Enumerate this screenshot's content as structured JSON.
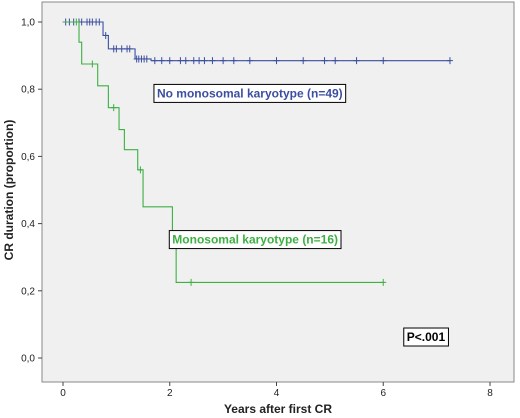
{
  "chart_data": {
    "type": "line",
    "subtype": "kaplan-meier step curve",
    "xlabel": "Years after first CR",
    "ylabel": "CR duration (proportion)",
    "xlim": [
      0,
      8
    ],
    "ylim": [
      0,
      1
    ],
    "x_ticks": [
      0,
      2,
      4,
      6,
      8
    ],
    "y_ticks": [
      0,
      0.2,
      0.4,
      0.6,
      0.8,
      1.0
    ],
    "x_tick_labels": [
      "0",
      "2",
      "4",
      "6",
      "8"
    ],
    "y_tick_labels": [
      "0,0",
      "0,2",
      "0,4",
      "0,6",
      "0,8",
      "1,0"
    ],
    "grid": false,
    "plot_background": "#f0f0f0",
    "series": [
      {
        "name": "No monosomal karyotype (n=49)",
        "color": "#3b4fa0",
        "steps": [
          [
            0,
            1.0
          ],
          [
            0.75,
            0.96
          ],
          [
            0.85,
            0.92
          ],
          [
            1.35,
            0.89
          ],
          [
            1.65,
            0.885
          ],
          [
            7.25,
            0.885
          ]
        ],
        "censors": [
          0.05,
          0.12,
          0.2,
          0.3,
          0.35,
          0.45,
          0.5,
          0.55,
          0.62,
          0.68,
          0.8,
          0.95,
          1.0,
          1.1,
          1.2,
          1.25,
          1.38,
          1.42,
          1.47,
          1.52,
          1.57,
          1.72,
          1.85,
          2.0,
          2.2,
          2.3,
          2.45,
          2.55,
          2.65,
          2.8,
          3.0,
          3.2,
          3.5,
          4.0,
          4.5,
          4.9,
          5.1,
          5.5,
          6.0,
          7.25
        ]
      },
      {
        "name": "Monosomal karyotype (n=16)",
        "color": "#3cb043",
        "steps": [
          [
            0,
            1.0
          ],
          [
            0.3,
            0.94
          ],
          [
            0.35,
            0.875
          ],
          [
            0.65,
            0.81
          ],
          [
            0.85,
            0.745
          ],
          [
            1.05,
            0.68
          ],
          [
            1.15,
            0.62
          ],
          [
            1.4,
            0.56
          ],
          [
            1.5,
            0.45
          ],
          [
            2.05,
            0.34
          ],
          [
            2.12,
            0.225
          ],
          [
            6.0,
            0.225
          ]
        ],
        "censors": [
          0.25,
          0.55,
          0.95,
          1.45,
          2.4,
          6.0
        ]
      }
    ],
    "annotations": [
      {
        "text": "No monosomal karyotype (n=49)",
        "x": 3.5,
        "y": 0.785,
        "color": "#3b4fa0"
      },
      {
        "text": "Monosomal karyotype (n=16)",
        "x": 3.6,
        "y": 0.35,
        "color": "#3cb043"
      },
      {
        "text": "P<.001",
        "x": 6.8,
        "y": 0.06,
        "color": "#000000"
      }
    ]
  }
}
